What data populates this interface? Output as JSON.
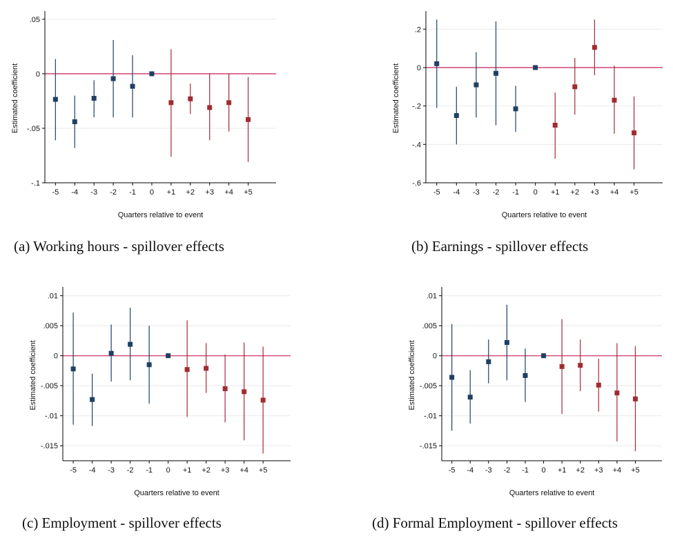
{
  "chart_data": [
    {
      "type": "scatter",
      "caption": "(a) Working hours - spillover effects",
      "xlabel": "Quarters relative to event",
      "ylabel": "Estimated coefficient",
      "categories": [
        "-5",
        "-4",
        "-3",
        "-2",
        "-1",
        "0",
        "+1",
        "+2",
        "+3",
        "+4",
        "+5"
      ],
      "yticks": [
        0.05,
        0,
        -0.05,
        -0.1
      ],
      "ytick_labels": [
        ".05",
        "0",
        "-.05",
        "-.1"
      ],
      "ylim": [
        -0.1,
        0.055
      ],
      "grid": true,
      "points": [
        {
          "x": "-5",
          "estimate": -0.0235,
          "ci_low": -0.061,
          "ci_high": 0.0135,
          "group": "pre"
        },
        {
          "x": "-4",
          "estimate": -0.044,
          "ci_low": -0.068,
          "ci_high": -0.02,
          "group": "pre"
        },
        {
          "x": "-3",
          "estimate": -0.0225,
          "ci_low": -0.04,
          "ci_high": -0.006,
          "group": "pre"
        },
        {
          "x": "-2",
          "estimate": -0.0045,
          "ci_low": -0.04,
          "ci_high": 0.031,
          "group": "pre"
        },
        {
          "x": "-1",
          "estimate": -0.0115,
          "ci_low": -0.04,
          "ci_high": 0.017,
          "group": "pre"
        },
        {
          "x": "0",
          "estimate": 0.0,
          "ci_low": 0.0,
          "ci_high": 0.0,
          "group": "ref"
        },
        {
          "x": "+1",
          "estimate": -0.0265,
          "ci_low": -0.076,
          "ci_high": 0.0225,
          "group": "post"
        },
        {
          "x": "+2",
          "estimate": -0.023,
          "ci_low": -0.037,
          "ci_high": -0.009,
          "group": "post"
        },
        {
          "x": "+3",
          "estimate": -0.031,
          "ci_low": -0.061,
          "ci_high": 0.0,
          "group": "post"
        },
        {
          "x": "+4",
          "estimate": -0.0265,
          "ci_low": -0.053,
          "ci_high": 0.0,
          "group": "post"
        },
        {
          "x": "+5",
          "estimate": -0.042,
          "ci_low": -0.081,
          "ci_high": -0.003,
          "group": "post"
        }
      ]
    },
    {
      "type": "scatter",
      "caption": "(b) Earnings - spillover effects",
      "xlabel": "Quarters relative to event",
      "ylabel": "Estimated coefficient",
      "categories": [
        "-5",
        "-4",
        "-3",
        "-2",
        "-1",
        "0",
        "+1",
        "+2",
        "+3",
        "+4",
        "+5"
      ],
      "yticks": [
        0.2,
        0,
        -0.2,
        -0.4,
        -0.6
      ],
      "ytick_labels": [
        ".2",
        "0",
        "-.2",
        "-.4",
        "-.6"
      ],
      "ylim": [
        -0.6,
        0.28
      ],
      "grid": true,
      "points": [
        {
          "x": "-5",
          "estimate": 0.02,
          "ci_low": -0.21,
          "ci_high": 0.25,
          "group": "pre"
        },
        {
          "x": "-4",
          "estimate": -0.25,
          "ci_low": -0.4,
          "ci_high": -0.1,
          "group": "pre"
        },
        {
          "x": "-3",
          "estimate": -0.09,
          "ci_low": -0.26,
          "ci_high": 0.08,
          "group": "pre"
        },
        {
          "x": "-2",
          "estimate": -0.03,
          "ci_low": -0.3,
          "ci_high": 0.24,
          "group": "pre"
        },
        {
          "x": "-1",
          "estimate": -0.215,
          "ci_low": -0.335,
          "ci_high": -0.095,
          "group": "pre"
        },
        {
          "x": "0",
          "estimate": 0.0,
          "ci_low": 0.0,
          "ci_high": 0.0,
          "group": "ref"
        },
        {
          "x": "+1",
          "estimate": -0.3,
          "ci_low": -0.475,
          "ci_high": -0.13,
          "group": "post"
        },
        {
          "x": "+2",
          "estimate": -0.1,
          "ci_low": -0.245,
          "ci_high": 0.05,
          "group": "post"
        },
        {
          "x": "+3",
          "estimate": 0.105,
          "ci_low": -0.04,
          "ci_high": 0.25,
          "group": "post"
        },
        {
          "x": "+4",
          "estimate": -0.17,
          "ci_low": -0.345,
          "ci_high": 0.01,
          "group": "post"
        },
        {
          "x": "+5",
          "estimate": -0.34,
          "ci_low": -0.53,
          "ci_high": -0.15,
          "group": "post"
        }
      ]
    },
    {
      "type": "scatter",
      "caption": "(c) Employment - spillover effects",
      "xlabel": "Quarters relative to event",
      "ylabel": "Estimated coefficient",
      "categories": [
        "-5",
        "-4",
        "-3",
        "-2",
        "-1",
        "0",
        "+1",
        "+2",
        "+3",
        "+4",
        "+5"
      ],
      "yticks": [
        0.01,
        0.005,
        0,
        -0.005,
        -0.01,
        -0.015
      ],
      "ytick_labels": [
        ".01",
        ".005",
        "0",
        "-.005",
        "-.01",
        "-.015"
      ],
      "ylim": [
        -0.0175,
        0.011
      ],
      "grid": true,
      "points": [
        {
          "x": "-5",
          "estimate": -0.0022,
          "ci_low": -0.0115,
          "ci_high": 0.0072,
          "group": "pre"
        },
        {
          "x": "-4",
          "estimate": -0.0073,
          "ci_low": -0.0117,
          "ci_high": -0.003,
          "group": "pre"
        },
        {
          "x": "-3",
          "estimate": 0.0004,
          "ci_low": -0.0043,
          "ci_high": 0.0052,
          "group": "pre"
        },
        {
          "x": "-2",
          "estimate": 0.0019,
          "ci_low": -0.0041,
          "ci_high": 0.008,
          "group": "pre"
        },
        {
          "x": "-1",
          "estimate": -0.0015,
          "ci_low": -0.008,
          "ci_high": 0.005,
          "group": "pre"
        },
        {
          "x": "0",
          "estimate": 0.0,
          "ci_low": 0.0,
          "ci_high": 0.0,
          "group": "ref"
        },
        {
          "x": "+1",
          "estimate": -0.0023,
          "ci_low": -0.0102,
          "ci_high": 0.0059,
          "group": "post"
        },
        {
          "x": "+2",
          "estimate": -0.0021,
          "ci_low": -0.0062,
          "ci_high": 0.0021,
          "group": "post"
        },
        {
          "x": "+3",
          "estimate": -0.0055,
          "ci_low": -0.0111,
          "ci_high": 0.0002,
          "group": "post"
        },
        {
          "x": "+4",
          "estimate": -0.006,
          "ci_low": -0.0141,
          "ci_high": 0.0022,
          "group": "post"
        },
        {
          "x": "+5",
          "estimate": -0.0074,
          "ci_low": -0.0163,
          "ci_high": 0.0015,
          "group": "post"
        }
      ]
    },
    {
      "type": "scatter",
      "caption": "(d) Formal Employment - spillover effects",
      "xlabel": "Quarters relative to event",
      "ylabel": "Estimated coefficient",
      "categories": [
        "-5",
        "-4",
        "-3",
        "-2",
        "-1",
        "0",
        "+1",
        "+2",
        "+3",
        "+4",
        "+5"
      ],
      "yticks": [
        0.01,
        0.005,
        0,
        -0.005,
        -0.01,
        -0.015
      ],
      "ytick_labels": [
        ".01",
        ".005",
        "0",
        "-.005",
        "-.01",
        "-.015"
      ],
      "ylim": [
        -0.0175,
        0.011
      ],
      "grid": true,
      "points": [
        {
          "x": "-5",
          "estimate": -0.0036,
          "ci_low": -0.0125,
          "ci_high": 0.0053,
          "group": "pre"
        },
        {
          "x": "-4",
          "estimate": -0.0069,
          "ci_low": -0.0113,
          "ci_high": -0.0024,
          "group": "pre"
        },
        {
          "x": "-3",
          "estimate": -0.001,
          "ci_low": -0.0046,
          "ci_high": 0.0027,
          "group": "pre"
        },
        {
          "x": "-2",
          "estimate": 0.0022,
          "ci_low": -0.0041,
          "ci_high": 0.0085,
          "group": "pre"
        },
        {
          "x": "-1",
          "estimate": -0.0033,
          "ci_low": -0.0077,
          "ci_high": 0.0012,
          "group": "pre"
        },
        {
          "x": "0",
          "estimate": 0.0,
          "ci_low": 0.0,
          "ci_high": 0.0,
          "group": "ref"
        },
        {
          "x": "+1",
          "estimate": -0.0018,
          "ci_low": -0.0097,
          "ci_high": 0.0061,
          "group": "post"
        },
        {
          "x": "+2",
          "estimate": -0.0016,
          "ci_low": -0.0059,
          "ci_high": 0.0027,
          "group": "post"
        },
        {
          "x": "+3",
          "estimate": -0.0049,
          "ci_low": -0.0093,
          "ci_high": -0.0005,
          "group": "post"
        },
        {
          "x": "+4",
          "estimate": -0.0062,
          "ci_low": -0.0143,
          "ci_high": 0.0021,
          "group": "post"
        },
        {
          "x": "+5",
          "estimate": -0.0072,
          "ci_low": -0.0159,
          "ci_high": 0.0016,
          "group": "post"
        }
      ]
    }
  ],
  "colors": {
    "pre": "#1f3f63",
    "post": "#a02c33",
    "ref": "#1f3f63",
    "zero_line": "#cc3366",
    "grid": "#e8e8e8",
    "axis": "#000000"
  }
}
